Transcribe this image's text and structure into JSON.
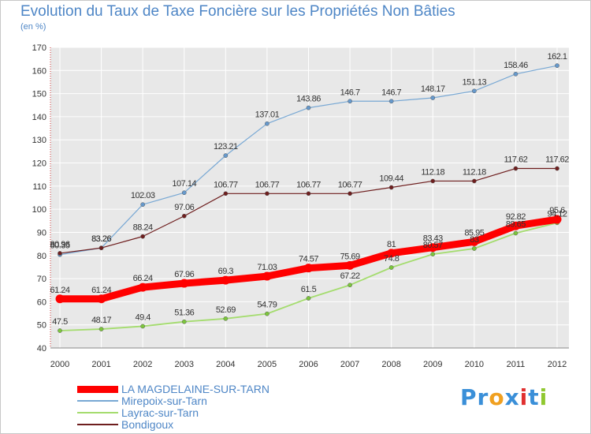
{
  "header": {
    "title": "Evolution du Taux de Taxe Foncière sur les Propriétés Non Bâties",
    "unit": "(en %)"
  },
  "colors": {
    "background": "#e8e8e8",
    "grid": "#ffffff",
    "axis_text": "#333333",
    "series": [
      "#ff0000",
      "#78a8d4",
      "#a4dc6e",
      "#6e1e1e"
    ],
    "markers": [
      "#ff0000",
      "#6699cc",
      "#7cc63c",
      "#6e1e1e"
    ],
    "legend_text": "#4e86c6"
  },
  "chart_data": {
    "type": "line",
    "title": "Evolution du Taux de Taxe Foncière sur les Propriétés Non Bâties",
    "ylabel": "(en %)",
    "xlabel": "",
    "x": [
      "2000",
      "2001",
      "2002",
      "2003",
      "2004",
      "2005",
      "2006",
      "2007",
      "2008",
      "2009",
      "2010",
      "2011",
      "2012"
    ],
    "ylim": [
      40,
      170
    ],
    "yticks": [
      40,
      50,
      60,
      70,
      80,
      90,
      100,
      110,
      120,
      130,
      140,
      150,
      160,
      170
    ],
    "grid": true,
    "legend_position": "bottom-left",
    "series": [
      {
        "name": "LA MAGDELAINE-SUR-TARN",
        "values": [
          61.24,
          61.24,
          66.24,
          67.96,
          69.3,
          71.03,
          74.57,
          75.69,
          81,
          83.43,
          85.95,
          92.82,
          95.6
        ],
        "labels": [
          "61.24",
          "61.24",
          "66.24",
          "67.96",
          "69.3",
          "71.03",
          "74.57",
          "75.69",
          "81",
          "83.43",
          "85.95",
          "92.82",
          "95.6"
        ]
      },
      {
        "name": "Mirepoix-sur-Tarn",
        "values": [
          80.35,
          83.26,
          102.03,
          107.14,
          123.21,
          137.01,
          143.86,
          146.7,
          146.7,
          148.17,
          151.13,
          158.46,
          162.1
        ],
        "labels": [
          "80.35",
          "83.26",
          "102.03",
          "107.14",
          "123.21",
          "137.01",
          "143.86",
          "146.7",
          "146.7",
          "148.17",
          "151.13",
          "158.46",
          "162.1"
        ]
      },
      {
        "name": "Layrac-sur-Tarn",
        "values": [
          47.5,
          48.17,
          49.4,
          51.36,
          52.69,
          54.79,
          61.5,
          67.22,
          74.8,
          80.57,
          83,
          89.65,
          94.12
        ],
        "labels": [
          "47.5",
          "48.17",
          "49.4",
          "51.36",
          "52.69",
          "54.79",
          "61.5",
          "67.22",
          "74.8",
          "80.57",
          "83",
          "89.65",
          "94.12"
        ]
      },
      {
        "name": "Bondigoux",
        "values": [
          80.96,
          83.26,
          88.24,
          97.06,
          106.77,
          106.77,
          106.77,
          106.77,
          109.44,
          112.18,
          112.18,
          117.62,
          117.62
        ],
        "labels": [
          "80.96",
          "83.26",
          "88.24",
          "97.06",
          "106.77",
          "106.77",
          "106.77",
          "106.77",
          "109.44",
          "112.18",
          "112.18",
          "117.62",
          "117.62"
        ]
      }
    ]
  },
  "legend": {
    "items": [
      "LA MAGDELAINE-SUR-TARN",
      "Mirepoix-sur-Tarn",
      "Layrac-sur-Tarn",
      "Bondigoux"
    ]
  },
  "logo": {
    "letters": [
      "P",
      "r",
      "o",
      "x",
      "i",
      "t",
      "i"
    ],
    "colors": [
      "#3a8fd8",
      "#3a8fd8",
      "#f0a020",
      "#3a8fd8",
      "#e03030",
      "#3a8fd8",
      "#90c830"
    ]
  }
}
